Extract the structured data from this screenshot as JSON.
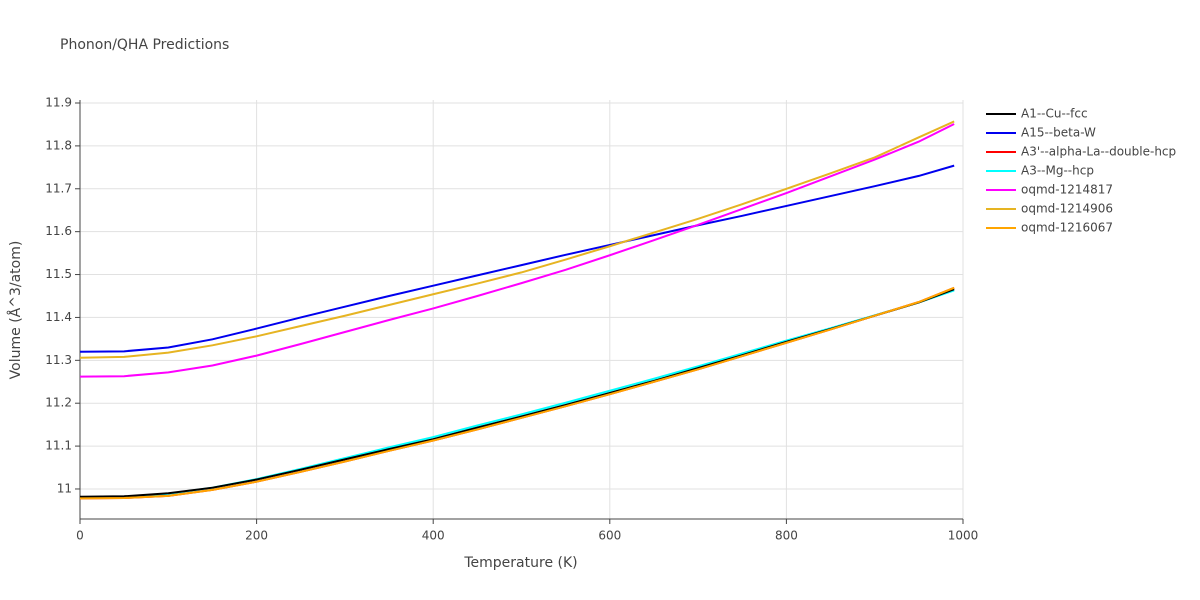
{
  "chart_data": {
    "type": "line",
    "title": "Phonon/QHA Predictions",
    "x_label": "Temperature (K)",
    "y_label": "Volume (Å^3/atom)",
    "x": [
      0,
      50,
      100,
      150,
      200,
      250,
      300,
      350,
      400,
      450,
      500,
      550,
      600,
      650,
      700,
      750,
      800,
      850,
      900,
      950,
      990
    ],
    "xlim": [
      0,
      1000
    ],
    "xticks": [
      0,
      200,
      400,
      600,
      800,
      1000
    ],
    "ylim": [
      10.93,
      11.907
    ],
    "yticks": [
      11,
      11.1,
      11.2,
      11.3,
      11.4,
      11.5,
      11.6,
      11.7,
      11.8,
      11.9
    ],
    "grid": true,
    "legend": "right",
    "series": [
      {
        "name": "A1--Cu--fcc",
        "color": "#000000",
        "values": [
          10.982,
          10.983,
          10.99,
          11.003,
          11.022,
          11.045,
          11.069,
          11.093,
          11.116,
          11.143,
          11.169,
          11.196,
          11.224,
          11.252,
          11.282,
          11.312,
          11.343,
          11.373,
          11.404,
          11.435,
          11.466
        ]
      },
      {
        "name": "A15--beta-W",
        "color": "#0000ee",
        "values": [
          11.32,
          11.321,
          11.33,
          11.349,
          11.374,
          11.4,
          11.425,
          11.45,
          11.474,
          11.498,
          11.522,
          11.546,
          11.569,
          11.592,
          11.615,
          11.637,
          11.66,
          11.683,
          11.706,
          11.73,
          11.754
        ]
      },
      {
        "name": "A3'--alpha-La--double-hcp",
        "color": "#ff0000",
        "values": [
          10.978,
          10.979,
          10.984,
          10.998,
          11.017,
          11.04,
          11.064,
          11.089,
          11.113,
          11.139,
          11.166,
          11.193,
          11.221,
          11.25,
          11.279,
          11.31,
          11.341,
          11.372,
          11.404,
          11.436,
          11.469
        ]
      },
      {
        "name": "A3--Mg--hcp",
        "color": "#00ffff",
        "values": [
          10.981,
          10.982,
          10.989,
          11.003,
          11.023,
          11.047,
          11.072,
          11.097,
          11.121,
          11.148,
          11.174,
          11.201,
          11.229,
          11.257,
          11.286,
          11.316,
          11.346,
          11.375,
          11.405,
          11.435,
          11.463
        ]
      },
      {
        "name": "oqmd-1214817",
        "color": "#ff00ff",
        "values": [
          11.262,
          11.263,
          11.272,
          11.288,
          11.311,
          11.338,
          11.366,
          11.394,
          11.421,
          11.45,
          11.48,
          11.511,
          11.545,
          11.58,
          11.616,
          11.653,
          11.69,
          11.729,
          11.768,
          11.81,
          11.851
        ]
      },
      {
        "name": "oqmd-1214906",
        "color": "#e6b422",
        "values": [
          11.306,
          11.308,
          11.318,
          11.335,
          11.356,
          11.38,
          11.404,
          11.429,
          11.454,
          11.479,
          11.505,
          11.535,
          11.566,
          11.598,
          11.63,
          11.664,
          11.7,
          11.736,
          11.773,
          11.82,
          11.857
        ]
      },
      {
        "name": "oqmd-1216067",
        "color": "#ffa500",
        "values": [
          10.978,
          10.979,
          10.984,
          10.998,
          11.017,
          11.04,
          11.064,
          11.089,
          11.113,
          11.139,
          11.166,
          11.193,
          11.221,
          11.25,
          11.279,
          11.31,
          11.341,
          11.372,
          11.404,
          11.436,
          11.469
        ]
      }
    ]
  }
}
